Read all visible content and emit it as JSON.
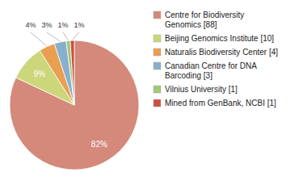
{
  "chart_data": {
    "type": "pie",
    "categories": [
      "Centre for Biodiversity\nGenomics [88]",
      "Beijing Genomics Institute [10]",
      "Naturalis Biodiversity Center [4]",
      "Canadian Centre for DNA\nBarcoding [3]",
      "Vilnius University [1]",
      "Mined from GenBank, NCBI [1]"
    ],
    "values": [
      82,
      9,
      4,
      3,
      1,
      1
    ],
    "value_labels": [
      "82%",
      "9%",
      "4%",
      "3%",
      "1%",
      "1%"
    ],
    "colors": [
      "#d4897a",
      "#ccd67a",
      "#e8a050",
      "#88b0cc",
      "#a0c878",
      "#cc5040"
    ],
    "data_labels": true,
    "legend": "right"
  }
}
